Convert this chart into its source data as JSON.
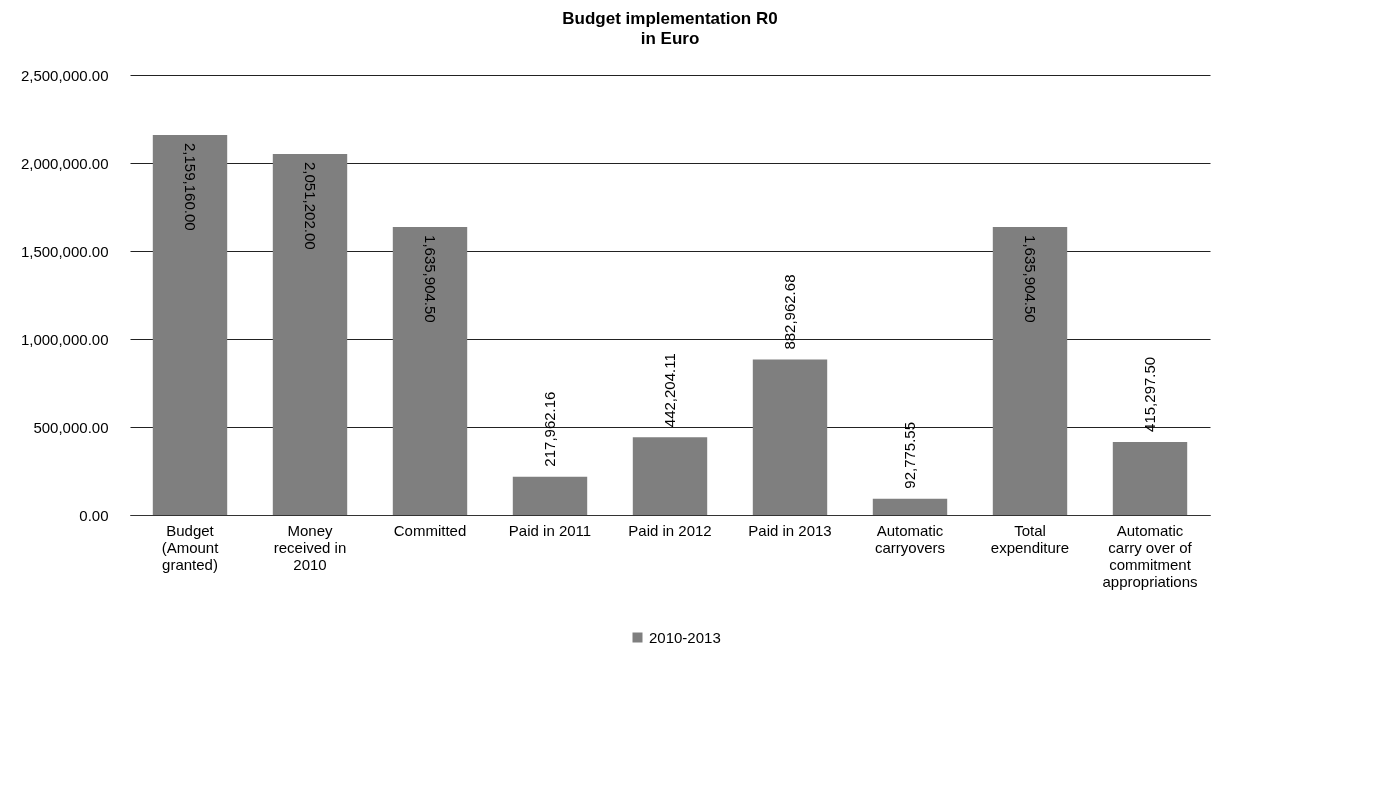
{
  "chart_data": {
    "type": "bar",
    "title": "Budget implementation R0",
    "subtitle": "in Euro",
    "categories": [
      "Budget (Amount granted)",
      "Money received in 2010",
      "Committed",
      "Paid in 2011",
      "Paid in 2012",
      "Paid in 2013",
      "Automatic carryovers",
      "Total expenditure",
      "Automatic carry over of commitment appropriations"
    ],
    "series": [
      {
        "name": "2010-2013",
        "color": "#7f7f7f",
        "values": [
          2159160.0,
          2051202.0,
          1635904.5,
          217962.16,
          442204.11,
          882962.68,
          92775.55,
          1635904.5,
          415297.5
        ],
        "value_labels": [
          "2,159,160.00",
          "2,051,202.00",
          "1,635,904.50",
          "217,962.16",
          "442,204.11",
          "882,962.68",
          "92,775.55",
          "1,635,904.50",
          "415,297.50"
        ]
      }
    ],
    "ylim": [
      0,
      2500000
    ],
    "yticks": [
      {
        "value": 0,
        "label": "0.00"
      },
      {
        "value": 500000,
        "label": "500,000.00"
      },
      {
        "value": 1000000,
        "label": "1,000,000.00"
      },
      {
        "value": 1500000,
        "label": "1,500,000.00"
      },
      {
        "value": 2000000,
        "label": "2,000,000.00"
      },
      {
        "value": 2500000,
        "label": "2,500,000.00"
      }
    ],
    "grid": "y",
    "legend": "bottom"
  }
}
